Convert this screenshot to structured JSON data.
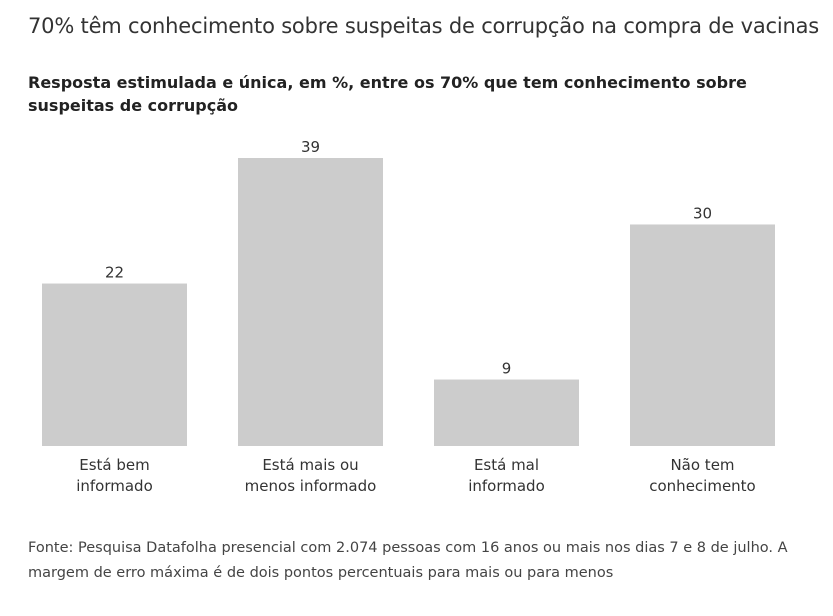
{
  "title": "70% têm conhecimento sobre suspeitas de corrupção na compra de vacinas",
  "subtitle": "Resposta estimulada e única, em %, entre os 70% que tem conhecimento sobre suspeitas de corrupção",
  "footnote": "Fonte: Pesquisa Datafolha presencial com 2.074 pessoas com 16 anos ou mais nos dias 7 e 8 de julho. A margem de erro máxima é de dois pontos percentuais para mais ou para menos",
  "colors": {
    "bar": "#cccccc",
    "text": "#333333"
  },
  "chart_data": {
    "type": "bar",
    "categories": [
      [
        "Está bem",
        "informado"
      ],
      [
        "Está mais ou",
        "menos informado"
      ],
      [
        "Está mal",
        "informado"
      ],
      [
        "Não tem",
        "conhecimento"
      ]
    ],
    "values": [
      22,
      39,
      9,
      30
    ],
    "ylim": [
      0,
      39
    ],
    "grid": false,
    "title": "",
    "xlabel": "",
    "ylabel": ""
  }
}
